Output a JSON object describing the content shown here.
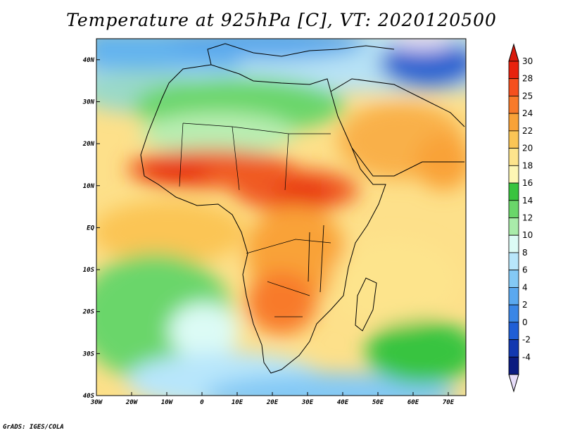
{
  "title": "Temperature at 925hPa [C], VT: 2020120500",
  "footer": "GrADS: IGES/COLA",
  "map": {
    "lon_range": [
      -30,
      75
    ],
    "lat_range": [
      -40,
      45
    ],
    "lon_ticks": [
      {
        "value": -30,
        "label": "30W"
      },
      {
        "value": -20,
        "label": "20W"
      },
      {
        "value": -10,
        "label": "10W"
      },
      {
        "value": 0,
        "label": "0"
      },
      {
        "value": 10,
        "label": "10E"
      },
      {
        "value": 20,
        "label": "20E"
      },
      {
        "value": 30,
        "label": "30E"
      },
      {
        "value": 40,
        "label": "40E"
      },
      {
        "value": 50,
        "label": "50E"
      },
      {
        "value": 60,
        "label": "60E"
      },
      {
        "value": 70,
        "label": "70E"
      }
    ],
    "lat_ticks": [
      {
        "value": 40,
        "label": "40N"
      },
      {
        "value": 30,
        "label": "30N"
      },
      {
        "value": 20,
        "label": "20N"
      },
      {
        "value": 10,
        "label": "10N"
      },
      {
        "value": 0,
        "label": "EQ"
      },
      {
        "value": -10,
        "label": "10S"
      },
      {
        "value": -20,
        "label": "20S"
      },
      {
        "value": -30,
        "label": "30S"
      },
      {
        "value": -40,
        "label": "40S"
      }
    ]
  },
  "colorbar": {
    "levels": [
      {
        "label": "30",
        "color": "#e8220e"
      },
      {
        "label": "28",
        "color": "#f5501e"
      },
      {
        "label": "25",
        "color": "#f87a2a"
      },
      {
        "label": "24",
        "color": "#f9a238"
      },
      {
        "label": "22",
        "color": "#fbc555"
      },
      {
        "label": "20",
        "color": "#fde48c"
      },
      {
        "label": "18",
        "color": "#fdf6b4"
      },
      {
        "label": "16",
        "color": "#39c43f"
      },
      {
        "label": "14",
        "color": "#6ad66a"
      },
      {
        "label": "12",
        "color": "#a9ecaa"
      },
      {
        "label": "10",
        "color": "#dcfbf5"
      },
      {
        "label": "8",
        "color": "#b8e6fb"
      },
      {
        "label": "6",
        "color": "#84c9f5"
      },
      {
        "label": "4",
        "color": "#5aa8ef"
      },
      {
        "label": "2",
        "color": "#3a86e6"
      },
      {
        "label": "0",
        "color": "#1f5ed6"
      },
      {
        "label": "-2",
        "color": "#1238b0"
      },
      {
        "label": "-4",
        "color": "#0b1b80"
      }
    ],
    "top_color": "#d81a0c",
    "bottom_color": "#e6dcf8"
  }
}
